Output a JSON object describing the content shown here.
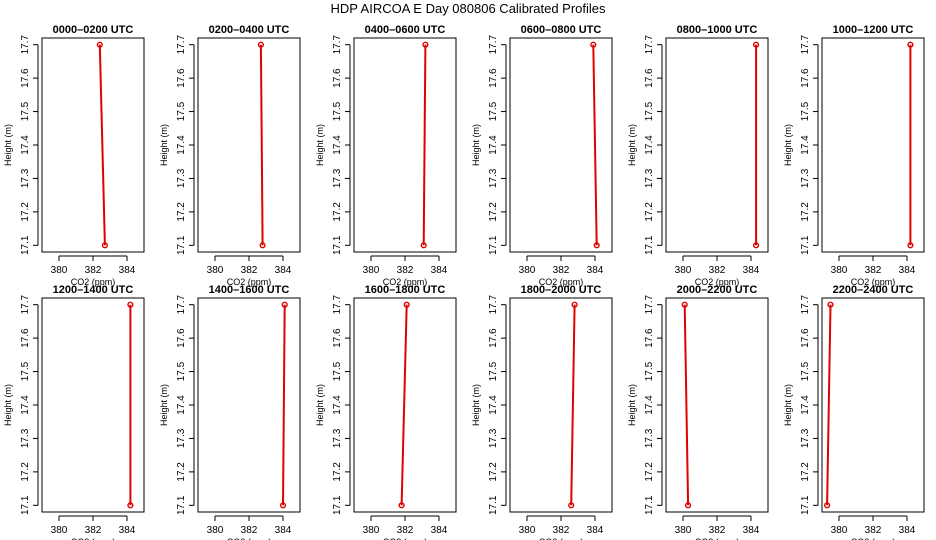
{
  "title": "HDP AIRCOA E  Day 080806  Calibrated Profiles",
  "chart_data": {
    "type": "line",
    "xlabel": "CO2 (ppm)",
    "ylabel": "Height (m)",
    "xlim": [
      379,
      385
    ],
    "ylim": [
      17.08,
      17.72
    ],
    "xticks": [
      380,
      382,
      384
    ],
    "yticks": [
      17.1,
      17.2,
      17.3,
      17.4,
      17.5,
      17.6,
      17.7
    ],
    "heights": [
      17.1,
      17.7
    ],
    "panels": [
      {
        "title": "0000–0200 UTC",
        "co2": [
          382.7,
          382.4
        ]
      },
      {
        "title": "0200–0400 UTC",
        "co2": [
          382.8,
          382.7
        ]
      },
      {
        "title": "0400–0600 UTC",
        "co2": [
          383.1,
          383.2
        ]
      },
      {
        "title": "0600–0800 UTC",
        "co2": [
          384.1,
          383.9
        ]
      },
      {
        "title": "0800–1000 UTC",
        "co2": [
          384.3,
          384.3
        ]
      },
      {
        "title": "1000–1200 UTC",
        "co2": [
          384.2,
          384.2
        ]
      },
      {
        "title": "1200–1400 UTC",
        "co2": [
          384.2,
          384.2
        ]
      },
      {
        "title": "1400–1600 UTC",
        "co2": [
          384.0,
          384.1
        ]
      },
      {
        "title": "1600–1800 UTC",
        "co2": [
          381.8,
          382.1
        ]
      },
      {
        "title": "1800–2000 UTC",
        "co2": [
          382.6,
          382.8
        ]
      },
      {
        "title": "2000–2200 UTC",
        "co2": [
          380.3,
          380.1
        ]
      },
      {
        "title": "2200–2400 UTC",
        "co2": [
          379.3,
          379.5
        ]
      }
    ]
  }
}
